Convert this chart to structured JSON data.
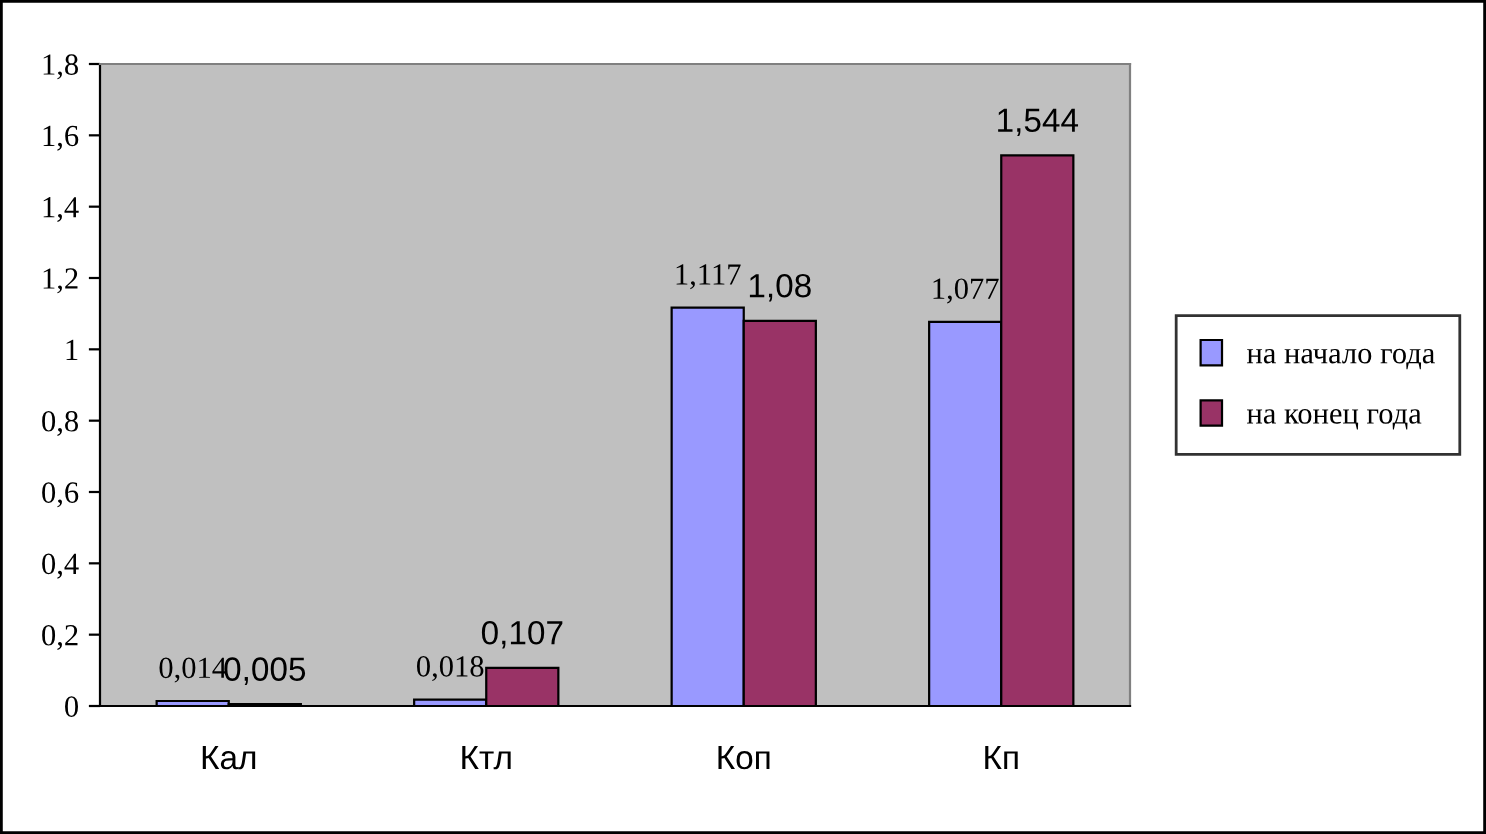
{
  "chart_data": {
    "type": "bar",
    "categories": [
      "Кал",
      "Ктл",
      "Коп",
      "Кп"
    ],
    "series": [
      {
        "name": "на начало года",
        "color": "#9999ff",
        "values": [
          0.014,
          0.018,
          1.117,
          1.077
        ],
        "value_labels": [
          "0,014",
          "0,018",
          "1,117",
          "1,077"
        ]
      },
      {
        "name": "на конец года",
        "color": "#993366",
        "values": [
          0.005,
          0.107,
          1.08,
          1.544
        ],
        "value_labels": [
          "0,005",
          "0,107",
          "1,08",
          "1,544"
        ]
      }
    ],
    "ylim": [
      0,
      1.8
    ],
    "yticks": [
      0,
      {
        "value": 0.2,
        "label": "0,2"
      },
      {
        "value": 0.4,
        "label": "0,4"
      },
      {
        "value": 0.6,
        "label": "0,6"
      },
      {
        "value": 0.8,
        "label": "0,8"
      },
      1,
      {
        "value": 1.2,
        "label": "1,2"
      },
      {
        "value": 1.4,
        "label": "1,4"
      },
      {
        "value": 1.6,
        "label": "1,6"
      },
      {
        "value": 1.8,
        "label": "1,8"
      }
    ],
    "grid": false,
    "legend": "right"
  }
}
